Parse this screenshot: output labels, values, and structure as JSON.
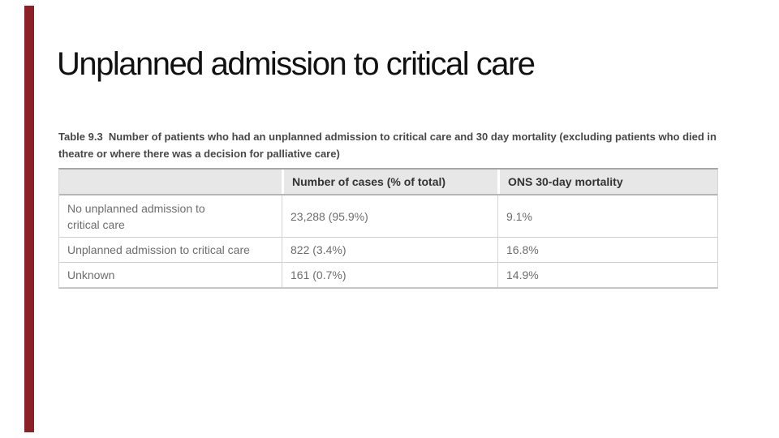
{
  "slide": {
    "title": "Unplanned admission to critical care",
    "accent_color": "#8b2126",
    "background_color": "#ffffff"
  },
  "table": {
    "caption": "Table 9.3  Number of patients who had an unplanned admission to critical care and 30 day mortality (excluding patients who died in theatre or where there was a decision for palliative care)",
    "headers": [
      "",
      "Number of cases (% of total)",
      "ONS 30-day mortality"
    ],
    "rows": [
      {
        "category": "No unplanned admission to\ncritical care",
        "cases": "23,288 (95.9%)",
        "mortality": "9.1%"
      },
      {
        "category": "Unplanned admission to critical care",
        "cases": "822 (3.4%)",
        "mortality": "16.8%"
      },
      {
        "category": "Unknown",
        "cases": "161 (0.7%)",
        "mortality": "14.9%"
      }
    ],
    "styles": {
      "header_bg": "#e7e7e7",
      "header_text": "#333333",
      "body_text": "#6d6d6d",
      "border_light": "#cfcfcf",
      "border_top": "#a6a6a6"
    }
  }
}
